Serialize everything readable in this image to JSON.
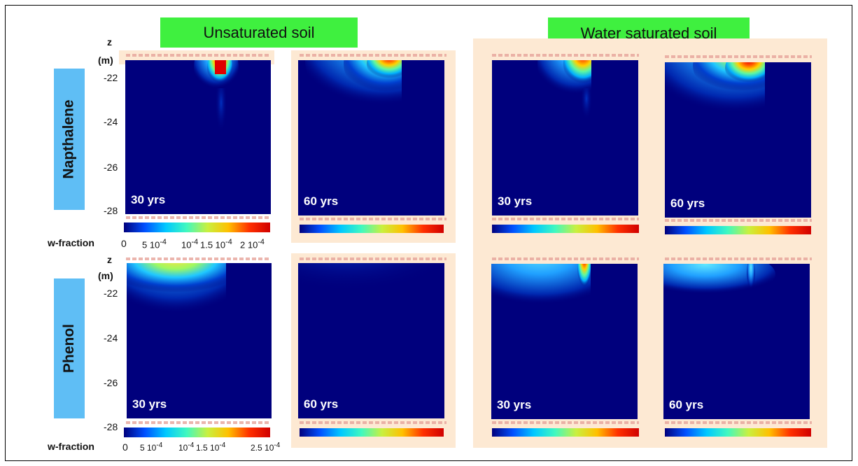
{
  "header": {
    "unsaturated": "Unsaturated soil",
    "saturated": "Water saturated soil"
  },
  "rows": {
    "napthalene": "Napthalene",
    "phenol": "Phenol"
  },
  "axis": {
    "z_label": "z",
    "unit_label": "(m)",
    "ticks": [
      "-22",
      "-24",
      "-26",
      "-28"
    ]
  },
  "times": {
    "t30": "30 yrs",
    "t60": "60 yrs"
  },
  "colorbar": {
    "label": "w-fraction",
    "top_ticks": [
      "0",
      "5 10",
      "10",
      "1.5 10",
      "2 10"
    ],
    "bottom_ticks": [
      "0",
      "5 10",
      "10",
      "1.5 10",
      "2.5 10"
    ]
  },
  "colors": {
    "header_bg": "#3ff03f",
    "row_label_bg": "#5fbef5",
    "plot_bg": "#00007d",
    "panel_bg": "#fde9d3"
  }
}
